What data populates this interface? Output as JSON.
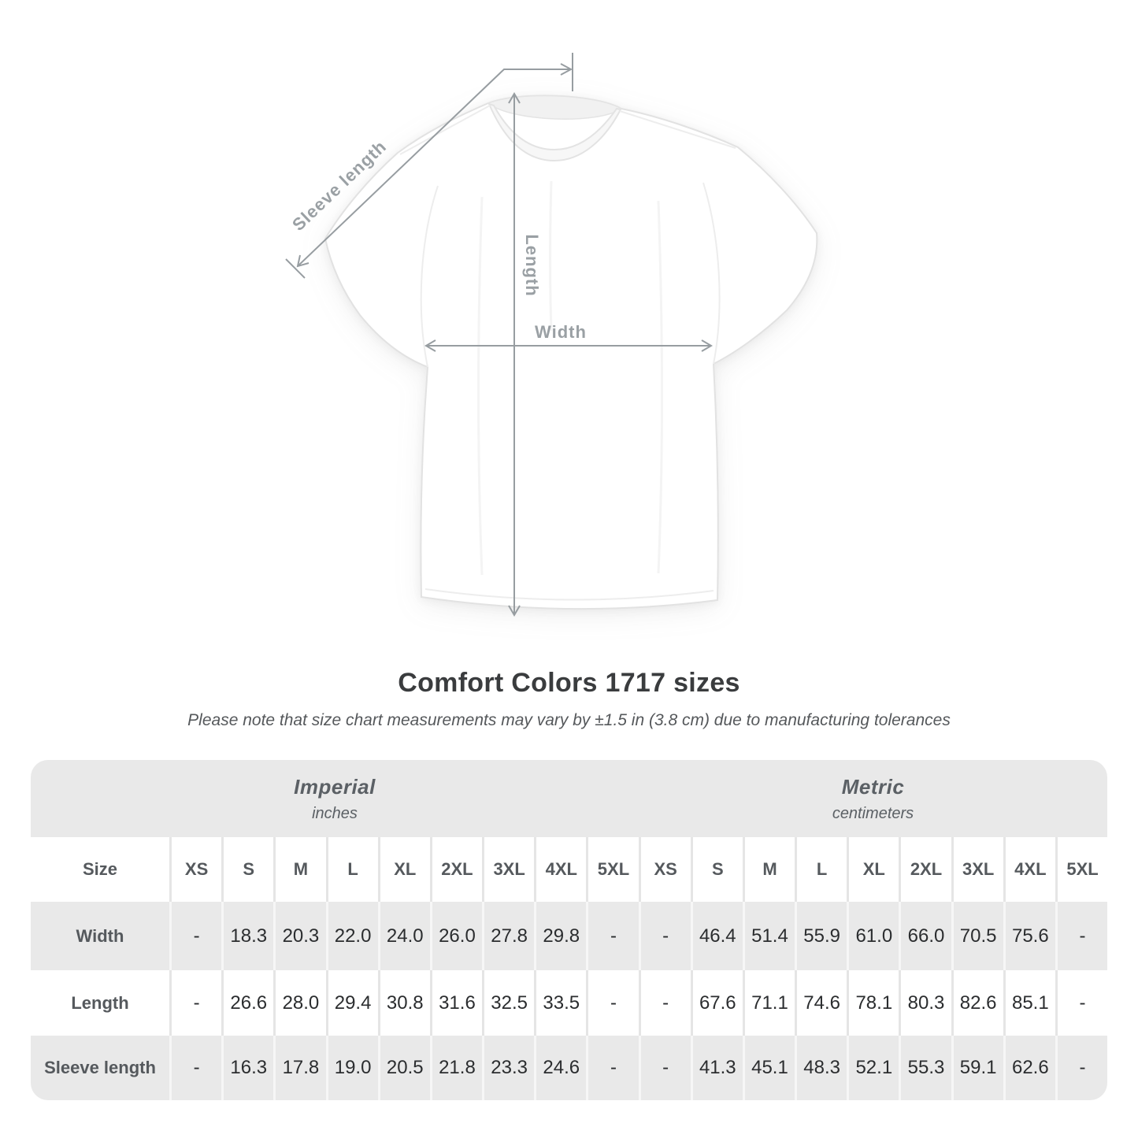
{
  "page": {
    "title": "Comfort Colors 1717 sizes",
    "subtitle": "Please note that size chart measurements may vary by ±1.5 in (3.8 cm) due to manufacturing tolerances"
  },
  "diagram": {
    "labels": {
      "sleeve_length": "Sleeve length",
      "length": "Length",
      "width": "Width"
    },
    "line_color": "#979da1",
    "label_color": "#9aa0a4"
  },
  "table": {
    "band_color": "#e9e9e9",
    "size_header": "Size",
    "groups": [
      {
        "label": "Imperial",
        "sublabel": "inches"
      },
      {
        "label": "Metric",
        "sublabel": "centimeters"
      }
    ],
    "sizes": [
      "XS",
      "S",
      "M",
      "L",
      "XL",
      "2XL",
      "3XL",
      "4XL",
      "5XL"
    ],
    "rows": [
      {
        "label": "Width",
        "imperial": [
          "-",
          "18.3",
          "20.3",
          "22.0",
          "24.0",
          "26.0",
          "27.8",
          "29.8",
          "-"
        ],
        "metric": [
          "-",
          "46.4",
          "51.4",
          "55.9",
          "61.0",
          "66.0",
          "70.5",
          "75.6",
          "-"
        ]
      },
      {
        "label": "Length",
        "imperial": [
          "-",
          "26.6",
          "28.0",
          "29.4",
          "30.8",
          "31.6",
          "32.5",
          "33.5",
          "-"
        ],
        "metric": [
          "-",
          "67.6",
          "71.1",
          "74.6",
          "78.1",
          "80.3",
          "82.6",
          "85.1",
          "-"
        ]
      },
      {
        "label": "Sleeve length",
        "imperial": [
          "-",
          "16.3",
          "17.8",
          "19.0",
          "20.5",
          "21.8",
          "23.3",
          "24.6",
          "-"
        ],
        "metric": [
          "-",
          "41.3",
          "45.1",
          "48.3",
          "52.1",
          "55.3",
          "59.1",
          "62.6",
          "-"
        ]
      }
    ]
  },
  "chart_data": {
    "type": "table",
    "title": "Comfort Colors 1717 sizes",
    "note": "Measurements may vary by ±1.5 in (3.8 cm) due to manufacturing tolerances",
    "columns": [
      "XS",
      "S",
      "M",
      "L",
      "XL",
      "2XL",
      "3XL",
      "4XL",
      "5XL"
    ],
    "units": {
      "imperial": "inches",
      "metric": "centimeters"
    },
    "rows": [
      {
        "measurement": "Width",
        "imperial_in": [
          null,
          18.3,
          20.3,
          22.0,
          24.0,
          26.0,
          27.8,
          29.8,
          null
        ],
        "metric_cm": [
          null,
          46.4,
          51.4,
          55.9,
          61.0,
          66.0,
          70.5,
          75.6,
          null
        ]
      },
      {
        "measurement": "Length",
        "imperial_in": [
          null,
          26.6,
          28.0,
          29.4,
          30.8,
          31.6,
          32.5,
          33.5,
          null
        ],
        "metric_cm": [
          null,
          67.6,
          71.1,
          74.6,
          78.1,
          80.3,
          82.6,
          85.1,
          null
        ]
      },
      {
        "measurement": "Sleeve length",
        "imperial_in": [
          null,
          16.3,
          17.8,
          19.0,
          20.5,
          21.8,
          23.3,
          24.6,
          null
        ],
        "metric_cm": [
          null,
          41.3,
          45.1,
          48.3,
          52.1,
          55.3,
          59.1,
          62.6,
          null
        ]
      }
    ]
  }
}
